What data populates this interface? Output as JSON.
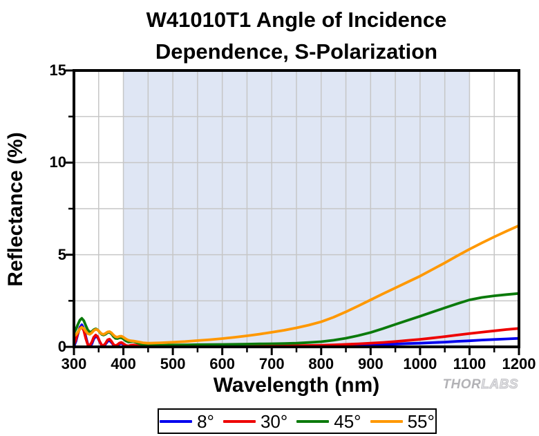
{
  "title": {
    "line1": "W41010T1 Angle of Incidence",
    "line2": "Dependence, S-Polarization"
  },
  "watermark": {
    "part1": "THOR",
    "part2": "LABS"
  },
  "chart_data": {
    "type": "line",
    "title": "W41010T1 Angle of Incidence Dependence, S-Polarization",
    "xlabel": "Wavelength (nm)",
    "ylabel": "Reflectance (%)",
    "xlim": [
      300,
      1200
    ],
    "ylim": [
      0,
      15
    ],
    "x_major_ticks": [
      300,
      400,
      500,
      600,
      700,
      800,
      900,
      1000,
      1100,
      1200
    ],
    "y_major_ticks": [
      0,
      5,
      10,
      15
    ],
    "x_minor_step": 50,
    "y_minor_step": 2.5,
    "grid": true,
    "grid_color": "#c6c6c6",
    "shaded_region": {
      "x_start": 400,
      "x_end": 1100,
      "color": "#dfe6f4"
    },
    "legend_position": "bottom",
    "x": [
      300,
      304,
      308,
      312,
      316,
      320,
      324,
      328,
      332,
      336,
      340,
      344,
      348,
      352,
      356,
      360,
      364,
      368,
      372,
      376,
      380,
      384,
      388,
      392,
      396,
      400,
      405,
      410,
      415,
      420,
      430,
      440,
      450,
      475,
      500,
      525,
      550,
      575,
      600,
      625,
      650,
      675,
      700,
      725,
      750,
      775,
      800,
      825,
      850,
      875,
      900,
      925,
      950,
      975,
      1000,
      1025,
      1050,
      1075,
      1100,
      1125,
      1150,
      1175,
      1200
    ],
    "series": [
      {
        "name": "8°",
        "color": "#0000EE",
        "values": [
          0.02,
          0.3,
          0.7,
          1.05,
          1.2,
          1.0,
          0.55,
          0.15,
          0.04,
          0.15,
          0.42,
          0.58,
          0.52,
          0.28,
          0.08,
          0.04,
          0.15,
          0.3,
          0.34,
          0.24,
          0.1,
          0.04,
          0.08,
          0.16,
          0.19,
          0.13,
          0.05,
          0.03,
          0.06,
          0.09,
          0.04,
          0.02,
          0.02,
          0.02,
          0.02,
          0.02,
          0.02,
          0.02,
          0.02,
          0.02,
          0.025,
          0.03,
          0.03,
          0.035,
          0.04,
          0.045,
          0.05,
          0.06,
          0.075,
          0.09,
          0.11,
          0.13,
          0.15,
          0.18,
          0.2,
          0.23,
          0.26,
          0.3,
          0.33,
          0.37,
          0.4,
          0.43,
          0.46
        ]
      },
      {
        "name": "30°",
        "color": "#EE0000",
        "values": [
          0.12,
          0.4,
          0.75,
          1.0,
          1.08,
          0.88,
          0.45,
          0.12,
          0.08,
          0.25,
          0.52,
          0.64,
          0.56,
          0.3,
          0.1,
          0.07,
          0.2,
          0.38,
          0.42,
          0.3,
          0.13,
          0.06,
          0.12,
          0.21,
          0.24,
          0.17,
          0.08,
          0.05,
          0.09,
          0.11,
          0.06,
          0.04,
          0.03,
          0.03,
          0.03,
          0.03,
          0.03,
          0.03,
          0.035,
          0.04,
          0.04,
          0.045,
          0.05,
          0.055,
          0.065,
          0.075,
          0.09,
          0.11,
          0.135,
          0.165,
          0.2,
          0.24,
          0.29,
          0.35,
          0.41,
          0.48,
          0.56,
          0.64,
          0.72,
          0.8,
          0.87,
          0.94,
          1.0
        ]
      },
      {
        "name": "45°",
        "color": "#0B7A0B",
        "values": [
          0.75,
          0.95,
          1.22,
          1.45,
          1.55,
          1.42,
          1.15,
          0.92,
          0.8,
          0.83,
          0.93,
          0.98,
          0.93,
          0.8,
          0.68,
          0.64,
          0.69,
          0.77,
          0.79,
          0.7,
          0.56,
          0.46,
          0.45,
          0.49,
          0.5,
          0.43,
          0.33,
          0.27,
          0.28,
          0.3,
          0.19,
          0.12,
          0.09,
          0.09,
          0.1,
          0.11,
          0.12,
          0.125,
          0.13,
          0.14,
          0.15,
          0.16,
          0.17,
          0.18,
          0.2,
          0.235,
          0.28,
          0.36,
          0.47,
          0.61,
          0.78,
          0.99,
          1.22,
          1.44,
          1.66,
          1.89,
          2.12,
          2.34,
          2.55,
          2.68,
          2.77,
          2.84,
          2.9
        ]
      },
      {
        "name": "55°",
        "color": "#FF9800",
        "values": [
          0.58,
          0.66,
          0.8,
          0.97,
          1.06,
          1.0,
          0.85,
          0.72,
          0.68,
          0.76,
          0.88,
          0.95,
          0.92,
          0.81,
          0.71,
          0.68,
          0.74,
          0.81,
          0.83,
          0.76,
          0.64,
          0.55,
          0.53,
          0.57,
          0.58,
          0.52,
          0.43,
          0.36,
          0.33,
          0.32,
          0.27,
          0.22,
          0.2,
          0.22,
          0.25,
          0.29,
          0.34,
          0.39,
          0.45,
          0.52,
          0.6,
          0.69,
          0.79,
          0.9,
          1.03,
          1.18,
          1.36,
          1.61,
          1.9,
          2.22,
          2.55,
          2.88,
          3.2,
          3.52,
          3.84,
          4.2,
          4.56,
          4.94,
          5.3,
          5.64,
          5.97,
          6.28,
          6.58
        ]
      }
    ]
  }
}
